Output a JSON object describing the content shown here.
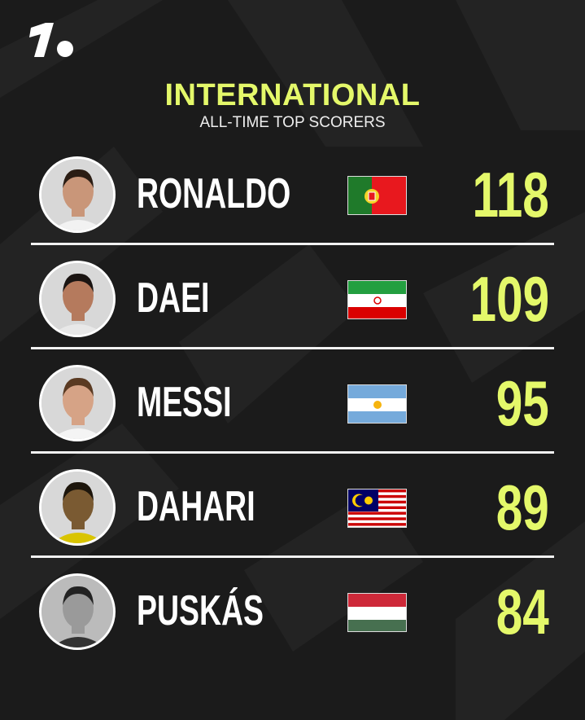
{
  "brand": {
    "logo": "1.",
    "accent_color": "#e4f86a"
  },
  "header": {
    "title": "INTERNATIONAL",
    "subtitle": "ALL-TIME TOP SCORERS"
  },
  "players": [
    {
      "name": "RONALDO",
      "country_flag": "portugal-flag",
      "goals": "118"
    },
    {
      "name": "DAEI",
      "country_flag": "iran-flag",
      "goals": "109"
    },
    {
      "name": "MESSI",
      "country_flag": "argentina-flag",
      "goals": "95"
    },
    {
      "name": "DAHARI",
      "country_flag": "malaysia-flag",
      "goals": "89"
    },
    {
      "name": "PUSKÁS",
      "country_flag": "hungary-flag",
      "goals": "84"
    }
  ]
}
